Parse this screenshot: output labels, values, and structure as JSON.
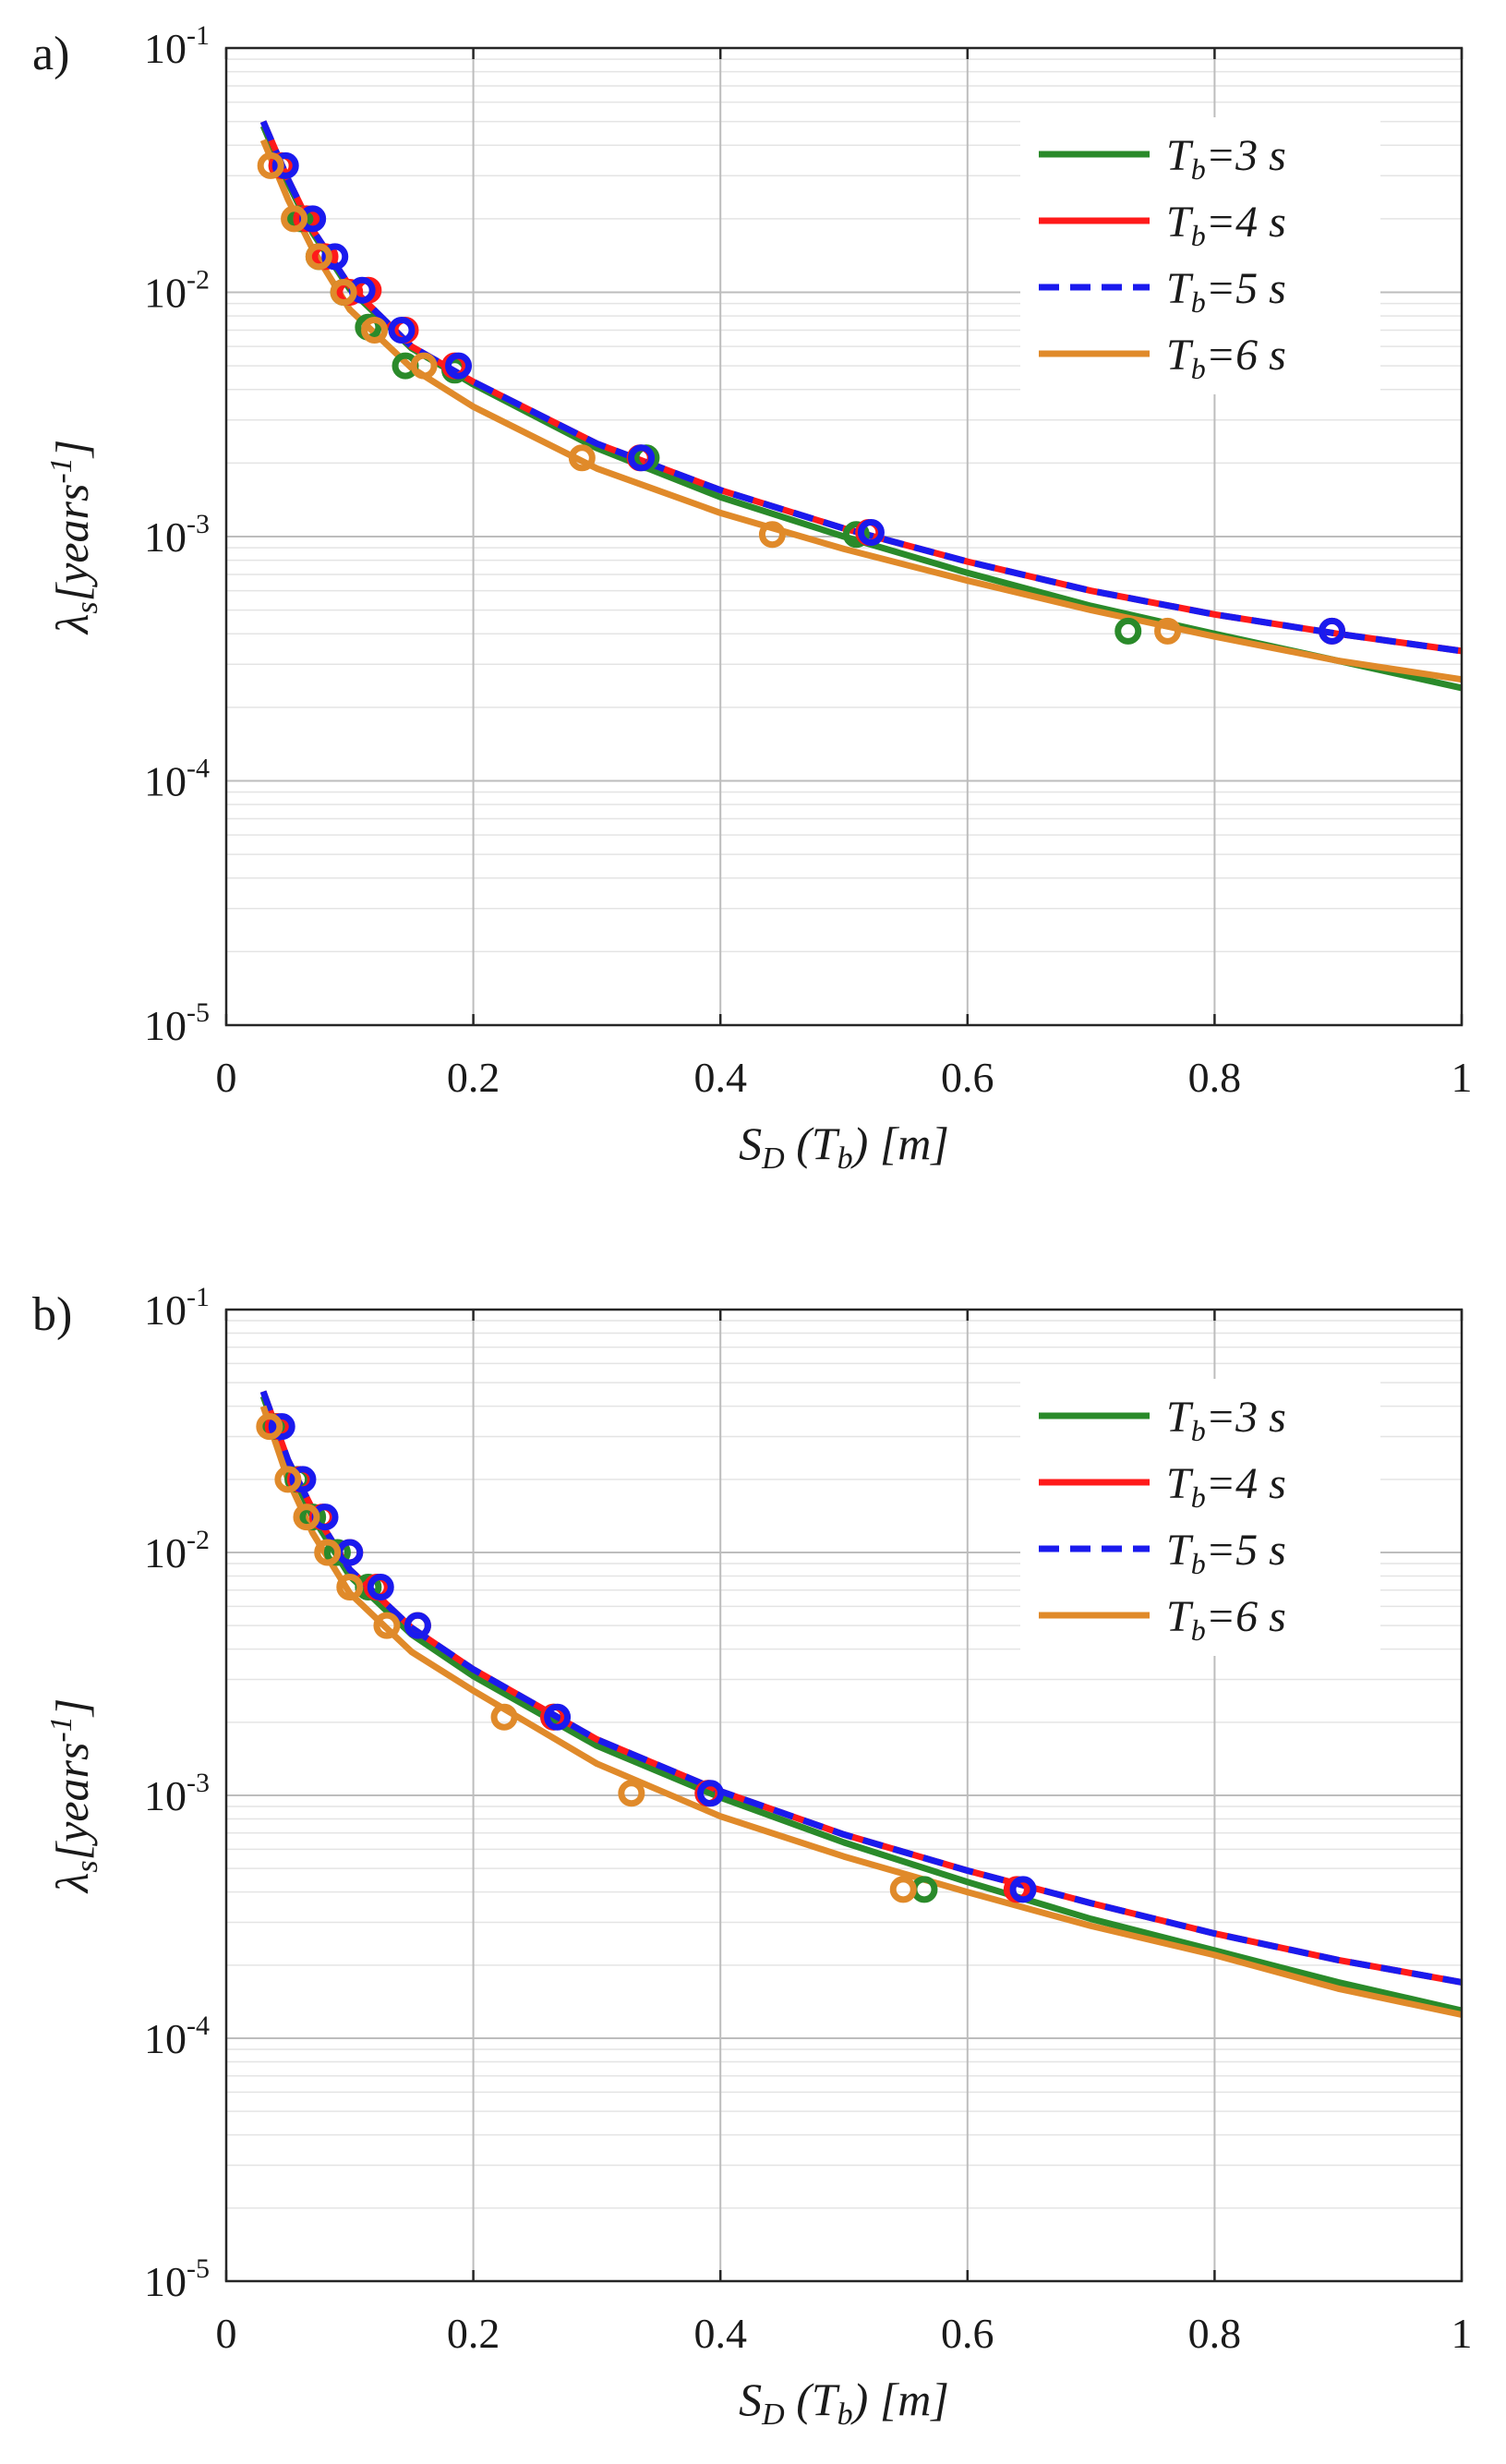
{
  "chart_data": [
    {
      "type": "line",
      "panel_label": "a)",
      "xlabel": "S_D (T_b) [m]",
      "ylabel": "λ_s[years^-1]",
      "xlim": [
        0,
        1
      ],
      "ylim": [
        1e-05,
        0.1
      ],
      "yscale": "log",
      "grid": true,
      "legend_position": "top-right",
      "x_ticks": [
        "0",
        "0.2",
        "0.4",
        "0.6",
        "0.8",
        "1"
      ],
      "y_ticks": [
        {
          "base": "10",
          "exp": "-1"
        },
        {
          "base": "10",
          "exp": "-2"
        },
        {
          "base": "10",
          "exp": "-3"
        },
        {
          "base": "10",
          "exp": "-4"
        },
        {
          "base": "10",
          "exp": "-5"
        }
      ],
      "series": [
        {
          "name": "T_b=3 s",
          "color": "#2a8a2a",
          "dash": false,
          "curve": {
            "x": [
              0.03,
              0.05,
              0.07,
              0.1,
              0.15,
              0.2,
              0.3,
              0.4,
              0.5,
              0.6,
              0.7,
              0.8,
              0.9,
              1.0
            ],
            "y": [
              0.048,
              0.028,
              0.0175,
              0.0103,
              0.0059,
              0.0042,
              0.0023,
              0.00145,
              0.001,
              0.00071,
              0.00052,
              0.0004,
              0.00031,
              0.00024
            ]
          },
          "points": {
            "x": [
              0.045,
              0.06,
              0.075,
              0.095,
              0.115,
              0.145,
              0.185,
              0.34,
              0.51,
              0.73
            ],
            "y": [
              0.033,
              0.02,
              0.014,
              0.01,
              0.0072,
              0.005,
              0.0048,
              0.0021,
              0.00102,
              0.00041
            ]
          }
        },
        {
          "name": "T_b=4 s",
          "color": "#ff1a1a",
          "dash": false,
          "curve": {
            "x": [
              0.03,
              0.05,
              0.07,
              0.1,
              0.15,
              0.2,
              0.3,
              0.4,
              0.5,
              0.6,
              0.7,
              0.8,
              0.9,
              1.0
            ],
            "y": [
              0.05,
              0.029,
              0.018,
              0.0106,
              0.006,
              0.0043,
              0.0024,
              0.00155,
              0.00108,
              0.00079,
              0.0006,
              0.00048,
              0.0004,
              0.00034
            ]
          },
          "points": {
            "x": [
              0.045,
              0.065,
              0.08,
              0.1,
              0.115,
              0.145,
              0.185,
              0.335,
              0.52,
              0.895
            ],
            "y": [
              0.033,
              0.02,
              0.014,
              0.01,
              0.0102,
              0.007,
              0.005,
              0.0021,
              0.00104,
              0.00041
            ]
          }
        },
        {
          "name": "T_b=5 s",
          "color": "#1a1aee",
          "dash": true,
          "curve": {
            "x": [
              0.03,
              0.05,
              0.07,
              0.1,
              0.15,
              0.2,
              0.3,
              0.4,
              0.5,
              0.6,
              0.7,
              0.8,
              0.9,
              1.0
            ],
            "y": [
              0.05,
              0.029,
              0.018,
              0.0106,
              0.006,
              0.0043,
              0.0024,
              0.00155,
              0.00108,
              0.00079,
              0.0006,
              0.00048,
              0.0004,
              0.00034
            ]
          },
          "points": {
            "x": [
              0.048,
              0.07,
              0.088,
              0.11,
              0.142,
              0.188,
              0.336,
              0.522,
              0.895
            ],
            "y": [
              0.033,
              0.02,
              0.014,
              0.0102,
              0.007,
              0.005,
              0.0021,
              0.00104,
              0.00041
            ]
          }
        },
        {
          "name": "T_b=6 s",
          "color": "#e08a2a",
          "dash": false,
          "curve": {
            "x": [
              0.03,
              0.05,
              0.07,
              0.1,
              0.15,
              0.2,
              0.3,
              0.4,
              0.5,
              0.6,
              0.7,
              0.8,
              0.9,
              1.0
            ],
            "y": [
              0.042,
              0.024,
              0.015,
              0.0085,
              0.0049,
              0.0034,
              0.0019,
              0.00125,
              0.00089,
              0.00066,
              0.0005,
              0.00039,
              0.00031,
              0.00026
            ]
          },
          "points": {
            "x": [
              0.036,
              0.055,
              0.075,
              0.095,
              0.12,
              0.16,
              0.288,
              0.442,
              0.762
            ],
            "y": [
              0.033,
              0.02,
              0.014,
              0.01,
              0.007,
              0.005,
              0.0021,
              0.00102,
              0.00041
            ]
          }
        }
      ]
    },
    {
      "type": "line",
      "panel_label": "b)",
      "xlabel": "S_D (T_b) [m]",
      "ylabel": "λ_s[years^-1]",
      "xlim": [
        0,
        1
      ],
      "ylim": [
        1e-05,
        0.1
      ],
      "yscale": "log",
      "grid": true,
      "legend_position": "top-right",
      "x_ticks": [
        "0",
        "0.2",
        "0.4",
        "0.6",
        "0.8",
        "1"
      ],
      "y_ticks": [
        {
          "base": "10",
          "exp": "-1"
        },
        {
          "base": "10",
          "exp": "-2"
        },
        {
          "base": "10",
          "exp": "-3"
        },
        {
          "base": "10",
          "exp": "-4"
        },
        {
          "base": "10",
          "exp": "-5"
        }
      ],
      "series": [
        {
          "name": "T_b=3 s",
          "color": "#2a8a2a",
          "dash": false,
          "curve": {
            "x": [
              0.03,
              0.05,
              0.07,
              0.1,
              0.15,
              0.2,
              0.3,
              0.4,
              0.5,
              0.6,
              0.7,
              0.8,
              0.9,
              1.0
            ],
            "y": [
              0.044,
              0.023,
              0.014,
              0.008,
              0.0046,
              0.0031,
              0.0016,
              0.00098,
              0.00064,
              0.00044,
              0.00031,
              0.00023,
              0.00017,
              0.00013
            ]
          },
          "points": {
            "x": [
              0.04,
              0.058,
              0.07,
              0.09,
              0.115,
              0.155,
              0.265,
              0.39,
              0.565
            ],
            "y": [
              0.033,
              0.02,
              0.014,
              0.01,
              0.0072,
              0.005,
              0.0021,
              0.00102,
              0.00041
            ]
          }
        },
        {
          "name": "T_b=4 s",
          "color": "#ff1a1a",
          "dash": false,
          "curve": {
            "x": [
              0.03,
              0.05,
              0.07,
              0.1,
              0.15,
              0.2,
              0.3,
              0.4,
              0.5,
              0.6,
              0.7,
              0.8,
              0.9,
              1.0
            ],
            "y": [
              0.046,
              0.024,
              0.015,
              0.0085,
              0.0049,
              0.0033,
              0.0017,
              0.00104,
              0.00069,
              0.00049,
              0.00036,
              0.00027,
              0.00021,
              0.00017
            ]
          },
          "points": {
            "x": [
              0.042,
              0.06,
              0.078,
              0.1,
              0.122,
              0.155,
              0.265,
              0.39,
              0.64
            ],
            "y": [
              0.033,
              0.02,
              0.014,
              0.01,
              0.0072,
              0.005,
              0.0021,
              0.00102,
              0.00041
            ]
          }
        },
        {
          "name": "T_b=5 s",
          "color": "#1a1aee",
          "dash": true,
          "curve": {
            "x": [
              0.03,
              0.05,
              0.07,
              0.1,
              0.15,
              0.2,
              0.3,
              0.4,
              0.5,
              0.6,
              0.7,
              0.8,
              0.9,
              1.0
            ],
            "y": [
              0.046,
              0.024,
              0.015,
              0.0085,
              0.0049,
              0.0033,
              0.0017,
              0.00104,
              0.00069,
              0.00049,
              0.00036,
              0.00027,
              0.00021,
              0.00017
            ]
          },
          "points": {
            "x": [
              0.045,
              0.062,
              0.08,
              0.1,
              0.125,
              0.155,
              0.268,
              0.392,
              0.645
            ],
            "y": [
              0.033,
              0.02,
              0.014,
              0.01,
              0.0072,
              0.005,
              0.0021,
              0.00102,
              0.00041
            ]
          }
        },
        {
          "name": "T_b=6 s",
          "color": "#e08a2a",
          "dash": false,
          "curve": {
            "x": [
              0.03,
              0.05,
              0.07,
              0.1,
              0.15,
              0.2,
              0.3,
              0.4,
              0.5,
              0.6,
              0.7,
              0.8,
              0.9,
              1.0
            ],
            "y": [
              0.04,
              0.02,
              0.012,
              0.0068,
              0.0039,
              0.0027,
              0.00135,
              0.00082,
              0.00056,
              0.0004,
              0.00029,
              0.00022,
              0.00016,
              0.000125
            ]
          },
          "points": {
            "x": [
              0.035,
              0.05,
              0.065,
              0.082,
              0.1,
              0.13,
              0.225,
              0.328,
              0.548
            ],
            "y": [
              0.033,
              0.02,
              0.014,
              0.01,
              0.0072,
              0.005,
              0.0021,
              0.00102,
              0.00041
            ]
          }
        }
      ]
    }
  ]
}
